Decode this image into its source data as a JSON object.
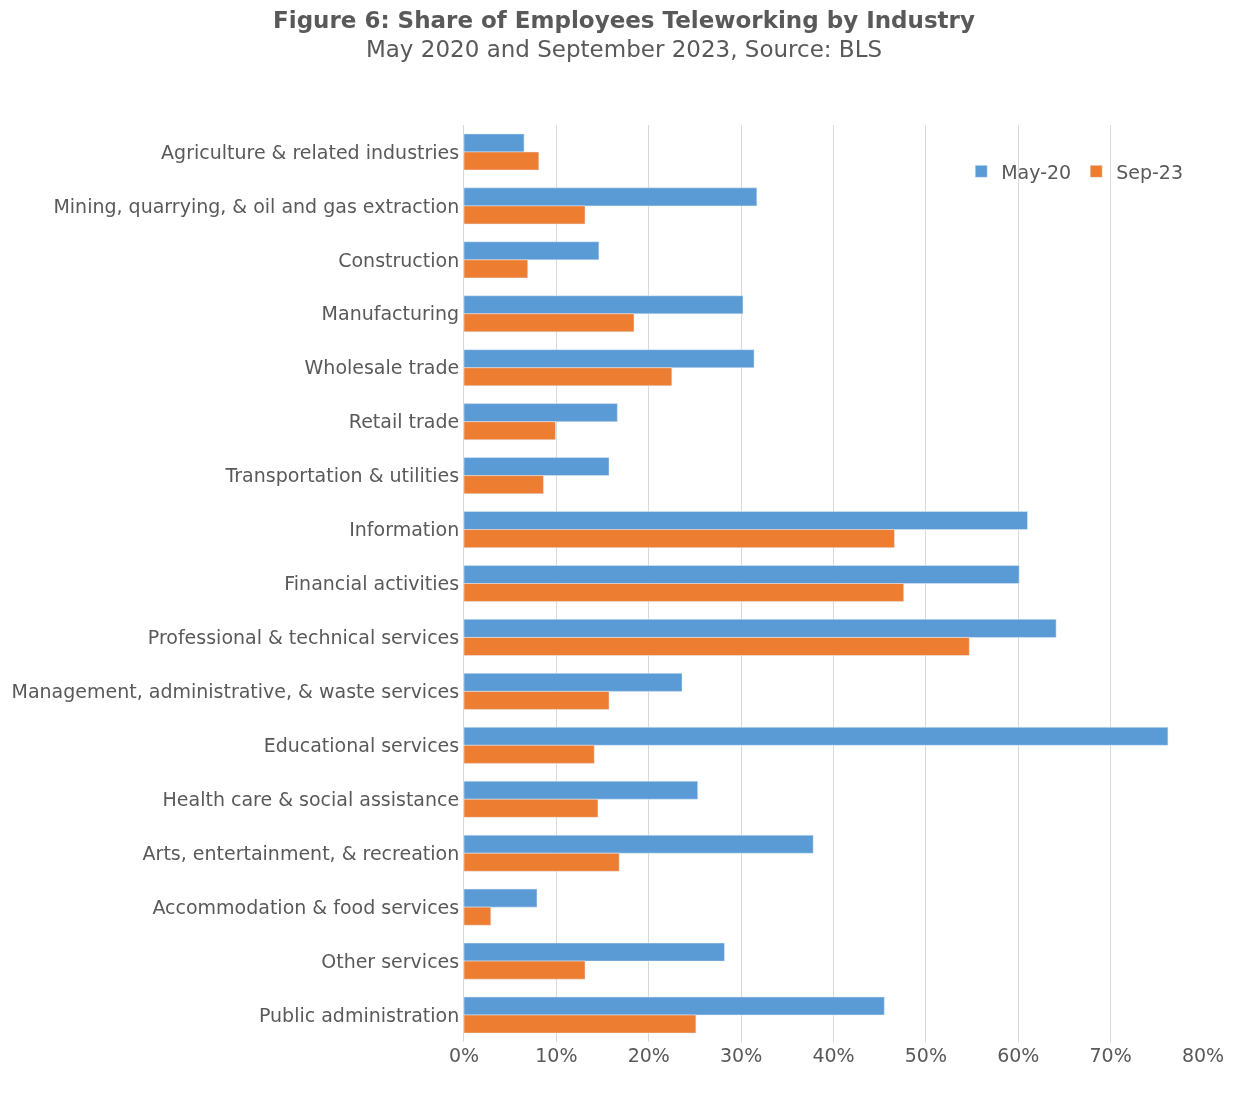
{
  "chart_data": {
    "type": "bar",
    "orientation": "horizontal",
    "title": "Figure 6: Share of Employees Teleworking by Industry",
    "subtitle": "May 2020 and September 2023, Source: BLS",
    "categories": [
      "Agriculture & related industries",
      "Mining, quarrying, & oil and gas extraction",
      "Construction",
      "Manufacturing",
      "Wholesale trade",
      "Retail trade",
      "Transportation & utilities",
      "Information",
      "Financial activities",
      "Professional & technical services",
      "Management, administrative, & waste services",
      "Educational services",
      "Health care & social assistance",
      "Arts, entertainment, & recreation",
      "Accommodation & food services",
      "Other services",
      "Public administration"
    ],
    "series": [
      {
        "name": "May-20",
        "color": "#5b9bd5",
        "values": [
          6.5,
          31.7,
          14.6,
          30.2,
          31.4,
          16.6,
          15.7,
          61.0,
          60.1,
          64.1,
          23.6,
          76.2,
          25.3,
          37.8,
          7.9,
          28.2,
          45.5
        ]
      },
      {
        "name": "Sep-23",
        "color": "#ed7d31",
        "values": [
          8.1,
          13.1,
          6.9,
          18.4,
          22.5,
          9.9,
          8.6,
          46.6,
          47.6,
          54.7,
          15.7,
          14.1,
          14.5,
          16.8,
          2.9,
          13.1,
          25.1
        ]
      }
    ],
    "xlim": [
      0,
      80
    ],
    "xticks": [
      {
        "value": 0,
        "label": "0%"
      },
      {
        "value": 10,
        "label": "10%"
      },
      {
        "value": 20,
        "label": "20%"
      },
      {
        "value": 30,
        "label": "30%"
      },
      {
        "value": 40,
        "label": "40%"
      },
      {
        "value": 50,
        "label": "50%"
      },
      {
        "value": 60,
        "label": "60%"
      },
      {
        "value": 70,
        "label": "70%"
      },
      {
        "value": 80,
        "label": "80%"
      }
    ],
    "grid": "x",
    "legend": "top right"
  }
}
